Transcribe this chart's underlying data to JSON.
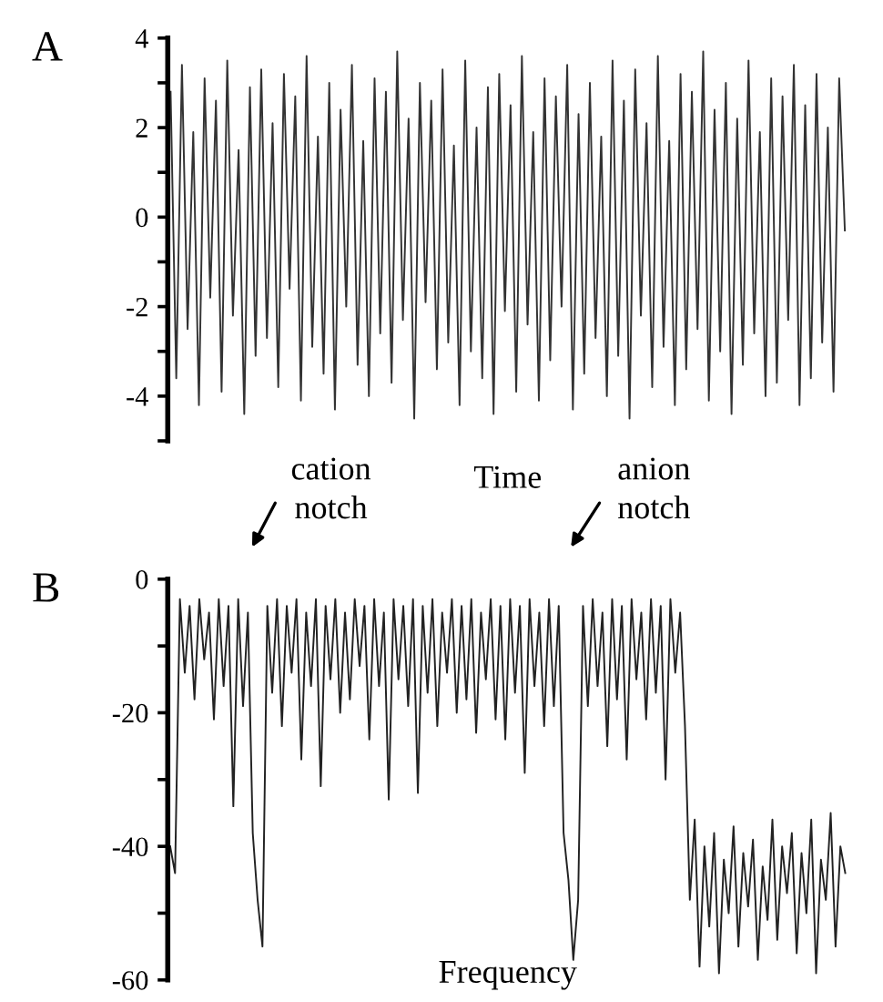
{
  "chart_data": [
    {
      "type": "line",
      "title": "A",
      "xlabel": "Time",
      "categories": [
        null,
        null,
        null,
        null,
        null,
        null,
        null,
        null,
        null,
        null,
        null,
        null,
        null,
        null,
        null,
        null,
        null,
        null,
        null,
        null,
        null,
        null,
        null,
        null,
        null,
        null,
        null,
        null,
        null,
        null,
        null,
        null,
        null,
        null,
        null,
        null,
        null,
        null,
        null,
        null,
        null,
        null,
        null,
        null,
        null,
        null,
        null,
        null,
        null,
        null,
        null,
        null,
        null,
        null,
        null,
        null,
        null,
        null,
        null,
        null,
        null,
        null,
        null,
        null,
        null,
        null,
        null,
        null,
        null,
        null,
        null,
        null,
        null,
        null,
        null,
        null,
        null,
        null,
        null,
        null,
        null,
        null,
        null,
        null,
        null,
        null,
        null,
        null,
        null,
        null,
        null,
        null,
        null,
        null,
        null,
        null,
        null,
        null,
        null,
        null,
        null,
        null,
        null,
        null,
        null,
        null,
        null,
        null,
        null,
        null,
        null,
        null,
        null,
        null,
        null,
        null,
        null,
        null,
        null,
        null
      ],
      "series": [
        {
          "color": "#333333",
          "values": [
            2.8,
            -3.6,
            3.4,
            -2.5,
            1.9,
            -4.2,
            3.1,
            -1.8,
            2.6,
            -3.9,
            3.5,
            -2.2,
            1.5,
            -4.4,
            2.9,
            -3.1,
            3.3,
            -2.7,
            2.1,
            -3.8,
            3.2,
            -1.6,
            2.7,
            -4.1,
            3.6,
            -2.9,
            1.8,
            -3.5,
            3.0,
            -4.3,
            2.4,
            -2.0,
            3.4,
            -3.3,
            1.7,
            -4.0,
            3.1,
            -2.6,
            2.8,
            -3.7,
            3.7,
            -2.3,
            2.2,
            -4.5,
            3.0,
            -1.9,
            2.6,
            -3.4,
            3.3,
            -2.8,
            1.6,
            -4.2,
            3.5,
            -3.0,
            2.0,
            -3.6,
            2.9,
            -4.4,
            3.2,
            -2.1,
            2.5,
            -3.9,
            3.6,
            -2.4,
            1.9,
            -4.1,
            3.1,
            -3.2,
            2.7,
            -2.0,
            3.4,
            -4.3,
            2.3,
            -3.5,
            3.0,
            -2.7,
            1.8,
            -4.0,
            3.5,
            -3.1,
            2.6,
            -4.5,
            3.3,
            -2.2,
            2.1,
            -3.8,
            3.6,
            -2.9,
            1.7,
            -4.2,
            3.2,
            -3.4,
            2.8,
            -2.5,
            3.7,
            -4.1,
            2.4,
            -3.0,
            3.0,
            -4.4,
            2.2,
            -3.3,
            3.5,
            -2.6,
            1.9,
            -4.0,
            3.1,
            -3.7,
            2.7,
            -2.3,
            3.4,
            -4.2,
            2.5,
            -3.6,
            3.2,
            -2.8,
            2.0,
            -3.9,
            3.1,
            -0.3
          ]
        }
      ],
      "ylim": [
        -5,
        4
      ],
      "yticks": [
        {
          "value": -5,
          "label": null
        },
        -4,
        {
          "value": -3,
          "label": null
        },
        -2,
        {
          "value": -1,
          "label": null
        },
        0,
        {
          "value": 1,
          "label": null
        },
        2,
        {
          "value": 3,
          "label": null
        },
        4
      ],
      "tick_labels": "y",
      "grid": false,
      "legend": false
    },
    {
      "type": "line",
      "title": "B",
      "xlabel": "Frequency",
      "annotations": [
        "cation\nnotch",
        "anion\nnotch"
      ],
      "categories": [
        null,
        null,
        null,
        null,
        null,
        null,
        null,
        null,
        null,
        null,
        null,
        null,
        null,
        null,
        null,
        null,
        null,
        null,
        null,
        null,
        null,
        null,
        null,
        null,
        null,
        null,
        null,
        null,
        null,
        null,
        null,
        null,
        null,
        null,
        null,
        null,
        null,
        null,
        null,
        null,
        null,
        null,
        null,
        null,
        null,
        null,
        null,
        null,
        null,
        null,
        null,
        null,
        null,
        null,
        null,
        null,
        null,
        null,
        null,
        null,
        null,
        null,
        null,
        null,
        null,
        null,
        null,
        null,
        null,
        null,
        null,
        null,
        null,
        null,
        null,
        null,
        null,
        null,
        null,
        null,
        null,
        null,
        null,
        null,
        null,
        null,
        null,
        null,
        null,
        null,
        null,
        null,
        null,
        null,
        null,
        null,
        null,
        null,
        null,
        null,
        null,
        null,
        null,
        null,
        null,
        null,
        null,
        null,
        null,
        null,
        null,
        null,
        null,
        null,
        null,
        null,
        null,
        null,
        null,
        null,
        null,
        null,
        null,
        null,
        null,
        null,
        null,
        null,
        null,
        null,
        null,
        null,
        null,
        null,
        null,
        null,
        null,
        null,
        null,
        null
      ],
      "series": [
        {
          "color": "#222222",
          "values": [
            -40,
            -44,
            -3,
            -14,
            -4,
            -18,
            -3,
            -12,
            -5,
            -21,
            -3,
            -16,
            -4,
            -34,
            -3,
            -19,
            -5,
            -38,
            -48,
            -55,
            -4,
            -17,
            -3,
            -22,
            -4,
            -14,
            -3,
            -27,
            -5,
            -16,
            -3,
            -31,
            -4,
            -15,
            -3,
            -20,
            -5,
            -18,
            -3,
            -13,
            -4,
            -24,
            -3,
            -16,
            -5,
            -33,
            -3,
            -15,
            -4,
            -19,
            -3,
            -32,
            -4,
            -17,
            -3,
            -22,
            -5,
            -14,
            -3,
            -20,
            -4,
            -18,
            -3,
            -23,
            -5,
            -15,
            -3,
            -21,
            -4,
            -24,
            -3,
            -17,
            -4,
            -29,
            -3,
            -16,
            -5,
            -22,
            -3,
            -19,
            -4,
            -38,
            -45,
            -57,
            -48,
            -4,
            -19,
            -3,
            -16,
            -5,
            -25,
            -3,
            -18,
            -4,
            -27,
            -3,
            -15,
            -5,
            -21,
            -3,
            -17,
            -4,
            -30,
            -3,
            -14,
            -5,
            -22,
            -48,
            -36,
            -58,
            -40,
            -52,
            -38,
            -59,
            -42,
            -50,
            -37,
            -55,
            -41,
            -49,
            -39,
            -57,
            -43,
            -51,
            -36,
            -54,
            -40,
            -47,
            -38,
            -56,
            -41,
            -50,
            -36,
            -59,
            -42,
            -48,
            -35,
            -55,
            -40,
            -44
          ]
        }
      ],
      "ylim": [
        -60,
        0
      ],
      "yticks": [
        {
          "value": -60,
          "label": "-60"
        },
        {
          "value": -50,
          "label": null
        },
        {
          "value": -40,
          "label": "-40"
        },
        {
          "value": -30,
          "label": null
        },
        {
          "value": -20,
          "label": "-20"
        },
        {
          "value": -10,
          "label": null
        },
        0
      ],
      "tick_labels": "y",
      "grid": false,
      "legend": false
    }
  ]
}
